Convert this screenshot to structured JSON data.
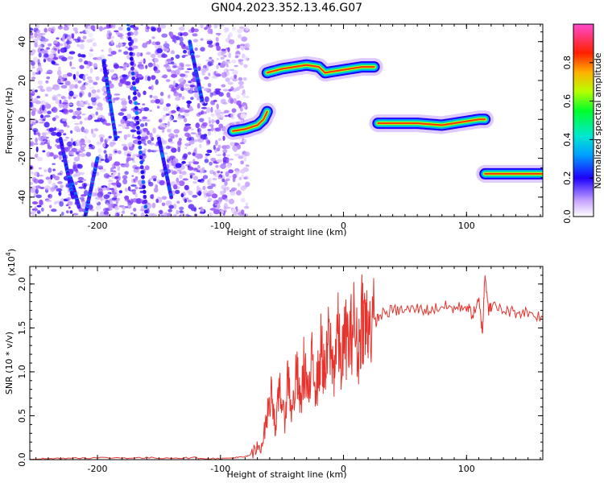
{
  "figure_title": "GN04.2023.352.13.46.G07",
  "chart_data": [
    {
      "type": "heatmap",
      "xlabel": "Height of straight line (km)",
      "ylabel": "Frequency (Hz)",
      "xlim": [
        -255,
        162
      ],
      "ylim": [
        -50,
        49
      ],
      "x_ticks": [
        -200,
        -100,
        0,
        100
      ],
      "x_tick_labels": [
        "-200",
        "-100",
        "0",
        "100"
      ],
      "y_ticks": [
        -40,
        -20,
        0,
        20,
        40
      ],
      "y_tick_labels": [
        "-40",
        "-20",
        "0",
        "20",
        "40"
      ],
      "colorbar": {
        "label": "Normalized spectral amplitude",
        "range": [
          0,
          1
        ],
        "ticks": [
          0,
          0.2,
          0.4,
          0.6,
          0.8
        ],
        "tick_labels": [
          "0.0",
          "0.2",
          "0.4",
          "0.6",
          "0.8"
        ],
        "colormap": [
          "#ffffff",
          "#8e44ff",
          "#1f00ff",
          "#00d8ff",
          "#00ff2a",
          "#c8ff00",
          "#ff8c00",
          "#ff0000",
          "#ff44c8"
        ]
      },
      "noise_region": {
        "x_from": -255,
        "x_to": -88,
        "amplitude": "0.0-0.4"
      },
      "doppler_tracks": [
        {
          "x": [
            -255,
            -240,
            -225,
            -210,
            -195,
            -180,
            -170,
            -160,
            -150,
            -140,
            -130,
            -120,
            -110,
            -100
          ],
          "y_note": "slanted streaks within noise"
        },
        {
          "x": [
            -90,
            -80,
            -70,
            -65,
            -62
          ],
          "y": [
            -6,
            -5,
            -3,
            0,
            4
          ]
        },
        {
          "x": [
            -62,
            -50,
            -40,
            -30,
            -20,
            -15,
            -5,
            5,
            15,
            25
          ],
          "y": [
            24,
            26,
            27,
            28,
            27,
            24,
            25,
            26,
            27,
            27
          ]
        },
        {
          "x": [
            28,
            40,
            60,
            80,
            90,
            100,
            110,
            115
          ],
          "y": [
            -2,
            -2,
            -2,
            -3,
            -2,
            -1,
            0,
            0
          ]
        },
        {
          "x": [
            115,
            130,
            145,
            162
          ],
          "y": [
            -28,
            -28,
            -28,
            -28
          ]
        }
      ]
    },
    {
      "type": "line",
      "xlabel": "Height of straight line (km)",
      "ylabel": "SNR (10 * v/v)",
      "y_multiplier_label": "(x10",
      "y_multiplier_exp": "4",
      "y_multiplier_close": ")",
      "xlim": [
        -255,
        162
      ],
      "ylim": [
        0,
        2.2
      ],
      "x_ticks": [
        -200,
        -100,
        0,
        100
      ],
      "x_tick_labels": [
        "-200",
        "-100",
        "0",
        "100"
      ],
      "y_ticks": [
        0,
        0.5,
        1.0,
        1.5,
        2.0
      ],
      "y_tick_labels": [
        "0.0",
        "0.5",
        "1.0",
        "1.5",
        "2.0"
      ],
      "series": [
        {
          "color": "#e8322c",
          "x": [
            -255,
            -240,
            -220,
            -200,
            -180,
            -160,
            -140,
            -120,
            -100,
            -90,
            -80,
            -72,
            -66,
            -62,
            -58,
            -55,
            -52,
            -48,
            -45,
            -42,
            -38,
            -35,
            -32,
            -28,
            -25,
            -22,
            -18,
            -15,
            -12,
            -8,
            -5,
            -2,
            2,
            5,
            8,
            12,
            15,
            18,
            20,
            25,
            30,
            40,
            50,
            60,
            70,
            80,
            90,
            100,
            105,
            110,
            113,
            115,
            118,
            120,
            130,
            140,
            150,
            162
          ],
          "y": [
            0.01,
            0.01,
            0.02,
            0.02,
            0.02,
            0.02,
            0.02,
            0.02,
            0.01,
            0.02,
            0.03,
            0.08,
            0.2,
            0.5,
            0.8,
            0.3,
            0.9,
            0.4,
            1.0,
            0.5,
            1.0,
            0.6,
            1.1,
            0.7,
            1.2,
            0.8,
            1.3,
            0.9,
            1.4,
            1.0,
            1.5,
            1.1,
            1.4,
            1.3,
            1.6,
            1.2,
            1.7,
            1.5,
            1.6,
            1.55,
            1.65,
            1.7,
            1.7,
            1.72,
            1.7,
            1.75,
            1.72,
            1.75,
            1.65,
            1.8,
            1.45,
            2.15,
            1.7,
            1.75,
            1.7,
            1.68,
            1.68,
            1.62
          ]
        }
      ]
    }
  ]
}
